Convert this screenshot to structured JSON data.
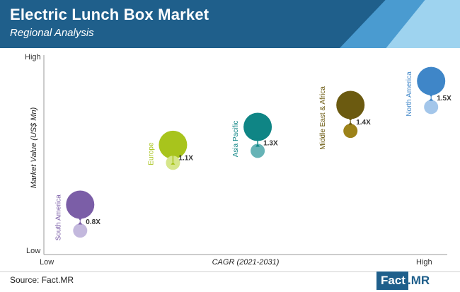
{
  "header": {
    "title": "Electric Lunch Box Market",
    "subtitle": "Regional Analysis"
  },
  "footer": {
    "source": "Source: Fact.MR",
    "logo_part1": "Fact",
    "logo_part2": ".MR"
  },
  "colors": {
    "header_bg": "#1f5f8b",
    "text_dark": "#222222"
  },
  "chart_data": {
    "type": "scatter",
    "title": "",
    "xlabel": "CAGR (2021-2031)",
    "ylabel": "Market Value (US$ Mn)",
    "x_ticks": [
      "Low",
      "High"
    ],
    "y_ticks": [
      "Low",
      "High"
    ],
    "ylim": [
      0,
      1
    ],
    "xlim": [
      0,
      1
    ],
    "points": [
      {
        "region_label": "South America",
        "multiplier": "0.8X",
        "x": 0.09,
        "y_current": 0.25,
        "y_future": 0.12,
        "color_current": "#7b5ea7",
        "color_future": "#c3b8dd"
      },
      {
        "region_label": "Europe",
        "multiplier": "1.1X",
        "x": 0.32,
        "y_current": 0.55,
        "y_future": 0.46,
        "color_current": "#a8c41c",
        "color_future": "#d6e68a"
      },
      {
        "region_label": "Asia Pacific",
        "multiplier": "1.3X",
        "x": 0.53,
        "y_current": 0.64,
        "y_future": 0.52,
        "color_current": "#0f8585",
        "color_future": "#66b3b6"
      },
      {
        "region_label": "Middle East & Africa",
        "multiplier": "1.4X",
        "x": 0.76,
        "y_current": 0.75,
        "y_future": 0.62,
        "color_current": "#6b5a10",
        "color_future": "#9c8219"
      },
      {
        "region_label": "North America",
        "multiplier": "1.5X",
        "x": 0.96,
        "y_current": 0.87,
        "y_future": 0.74,
        "color_current": "#3f86c8",
        "color_future": "#a3c6ea"
      }
    ]
  }
}
